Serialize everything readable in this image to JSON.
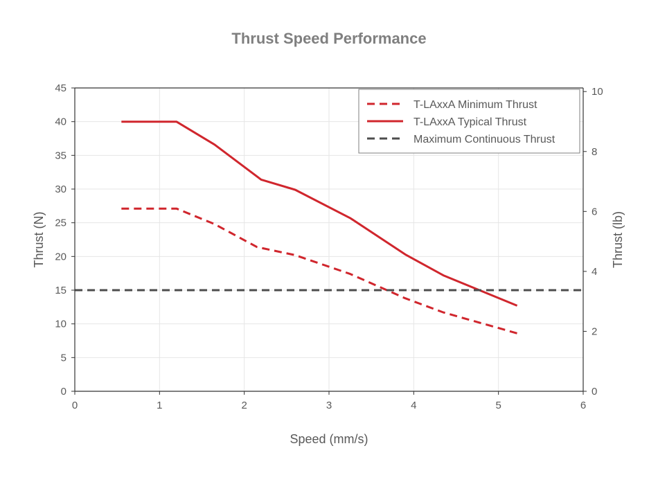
{
  "chart_data": {
    "type": "line",
    "title": "Thrust Speed Performance",
    "xlabel": "Speed (mm/s)",
    "ylabel": "Thrust (N)",
    "y2label": "Thrust (lb)",
    "xlim": [
      0,
      6
    ],
    "ylim": [
      0,
      45
    ],
    "y2lim": [
      0,
      10.12
    ],
    "xticks": [
      "0",
      "1",
      "2",
      "3",
      "4",
      "5",
      "6"
    ],
    "yticks": [
      "0",
      "5",
      "10",
      "15",
      "20",
      "25",
      "30",
      "35",
      "40",
      "45"
    ],
    "y2ticks": [
      "0",
      "2",
      "4",
      "6",
      "8",
      "10"
    ],
    "grid": true,
    "legend_position": "top-right",
    "series": [
      {
        "name": "T-LAxxA Minimum Thrust",
        "style": "dashed",
        "color": "#d0262d",
        "x": [
          0.55,
          1.2,
          1.65,
          2.15,
          2.6,
          3.25,
          3.9,
          4.35,
          5.22
        ],
        "values": [
          27.1,
          27.1,
          24.8,
          21.4,
          20.2,
          17.4,
          13.8,
          11.7,
          8.6
        ]
      },
      {
        "name": "T-LAxxA Typical Thrust",
        "style": "solid",
        "color": "#d0262d",
        "x": [
          0.55,
          1.2,
          1.65,
          2.2,
          2.6,
          3.25,
          3.9,
          4.35,
          5.22
        ],
        "values": [
          40.0,
          40.0,
          36.6,
          31.4,
          29.9,
          25.7,
          20.3,
          17.2,
          12.7
        ]
      },
      {
        "name": "Maximum Continuous Thrust",
        "style": "dashed",
        "color": "#4d4d4d",
        "x": [
          0,
          6
        ],
        "values": [
          15,
          15
        ]
      }
    ]
  }
}
